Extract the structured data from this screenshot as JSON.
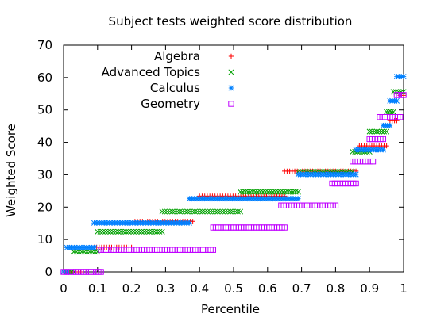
{
  "chart_data": {
    "type": "scatter",
    "title": "Subject tests weighted score distribution",
    "xlabel": "Percentile",
    "ylabel": "Weighted Score",
    "xlim": [
      0,
      1
    ],
    "ylim": [
      0,
      70
    ],
    "xticks": [
      0,
      0.1,
      0.2,
      0.3,
      0.4,
      0.5,
      0.6,
      0.7,
      0.8,
      0.9,
      1
    ],
    "xtick_labels": [
      "0",
      "0.1",
      "0.2",
      "0.3",
      "0.4",
      "0.5",
      "0.6",
      "0.7",
      "0.8",
      "0.9",
      "1"
    ],
    "yticks": [
      0,
      10,
      20,
      30,
      40,
      50,
      60,
      70
    ],
    "ytick_labels": [
      "0",
      "10",
      "20",
      "30",
      "40",
      "50",
      "60",
      "70"
    ],
    "grid": false,
    "legend_position": "top-left",
    "series": [
      {
        "name": "Algebra",
        "marker": "plus",
        "color": "#ff0000",
        "segments": [
          {
            "x0": 0.0,
            "x1": 0.05,
            "y": 0
          },
          {
            "x0": 0.09,
            "x1": 0.2,
            "y": 7.6
          },
          {
            "x0": 0.21,
            "x1": 0.38,
            "y": 15.6
          },
          {
            "x0": 0.4,
            "x1": 0.65,
            "y": 23.4
          },
          {
            "x0": 0.65,
            "x1": 0.86,
            "y": 31.1
          },
          {
            "x0": 0.87,
            "x1": 0.95,
            "y": 38.9
          },
          {
            "x0": 0.96,
            "x1": 0.98,
            "y": 46.7
          },
          {
            "x0": 0.99,
            "x1": 1.0,
            "y": 54.5
          }
        ]
      },
      {
        "name": "Advanced Topics",
        "marker": "cross",
        "color": "#00a000",
        "segments": [
          {
            "x0": 0.0,
            "x1": 0.03,
            "y": 0
          },
          {
            "x0": 0.03,
            "x1": 0.1,
            "y": 6.2
          },
          {
            "x0": 0.1,
            "x1": 0.29,
            "y": 12.4
          },
          {
            "x0": 0.29,
            "x1": 0.52,
            "y": 18.6
          },
          {
            "x0": 0.52,
            "x1": 0.69,
            "y": 24.7
          },
          {
            "x0": 0.69,
            "x1": 0.85,
            "y": 30.9
          },
          {
            "x0": 0.85,
            "x1": 0.9,
            "y": 37.1
          },
          {
            "x0": 0.9,
            "x1": 0.95,
            "y": 43.3
          },
          {
            "x0": 0.95,
            "x1": 0.97,
            "y": 49.4
          },
          {
            "x0": 0.97,
            "x1": 1.0,
            "y": 55.6
          }
        ]
      },
      {
        "name": "Calculus",
        "marker": "star",
        "color": "#0080ff",
        "segments": [
          {
            "x0": 0.0,
            "x1": 0.01,
            "y": 0
          },
          {
            "x0": 0.01,
            "x1": 0.09,
            "y": 7.5
          },
          {
            "x0": 0.09,
            "x1": 0.37,
            "y": 15.1
          },
          {
            "x0": 0.37,
            "x1": 0.69,
            "y": 22.6
          },
          {
            "x0": 0.69,
            "x1": 0.86,
            "y": 30.1
          },
          {
            "x0": 0.86,
            "x1": 0.94,
            "y": 37.7
          },
          {
            "x0": 0.94,
            "x1": 0.96,
            "y": 45.2
          },
          {
            "x0": 0.96,
            "x1": 0.98,
            "y": 52.8
          },
          {
            "x0": 0.98,
            "x1": 1.0,
            "y": 60.3
          }
        ]
      },
      {
        "name": "Geometry",
        "marker": "square",
        "color": "#c000ff",
        "segments": [
          {
            "x0": 0.0,
            "x1": 0.11,
            "y": 0
          },
          {
            "x0": 0.11,
            "x1": 0.44,
            "y": 6.8
          },
          {
            "x0": 0.44,
            "x1": 0.65,
            "y": 13.7
          },
          {
            "x0": 0.64,
            "x1": 0.8,
            "y": 20.5
          },
          {
            "x0": 0.79,
            "x1": 0.86,
            "y": 27.3
          },
          {
            "x0": 0.85,
            "x1": 0.91,
            "y": 34.1
          },
          {
            "x0": 0.9,
            "x1": 0.94,
            "y": 41.0
          },
          {
            "x0": 0.93,
            "x1": 0.99,
            "y": 47.8
          },
          {
            "x0": 0.98,
            "x1": 1.0,
            "y": 54.6
          }
        ]
      }
    ]
  }
}
